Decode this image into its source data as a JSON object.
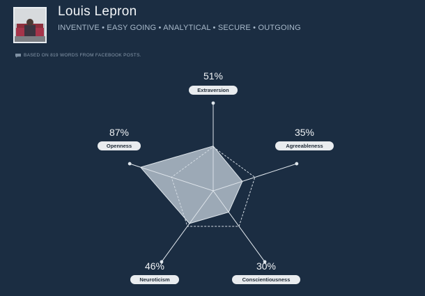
{
  "profile": {
    "name": "Louis  Lepron",
    "traits_line": "INVENTIVE • EASY GOING • ANALYTICAL • SECURE • OUTGOING",
    "basis": "BASED ON 819 WORDS FROM FACEBOOK POSTS.",
    "basis_icon": "chat-bubble-icon"
  },
  "colors": {
    "background": "#1b2d42",
    "shape_fill": "#b9c4cf",
    "line": "#c7d1db"
  },
  "chart_data": {
    "type": "radar",
    "title": "",
    "categories": [
      "Extraversion",
      "Agreeableness",
      "Conscientiousness",
      "Neuroticism",
      "Openness"
    ],
    "values": [
      51,
      35,
      30,
      46,
      87
    ],
    "value_labels": [
      "51%",
      "35%",
      "30%",
      "46%",
      "87%"
    ],
    "reference_values": [
      50,
      50,
      50,
      50,
      50
    ],
    "range": [
      0,
      100
    ],
    "grid": false,
    "legend": "none"
  }
}
